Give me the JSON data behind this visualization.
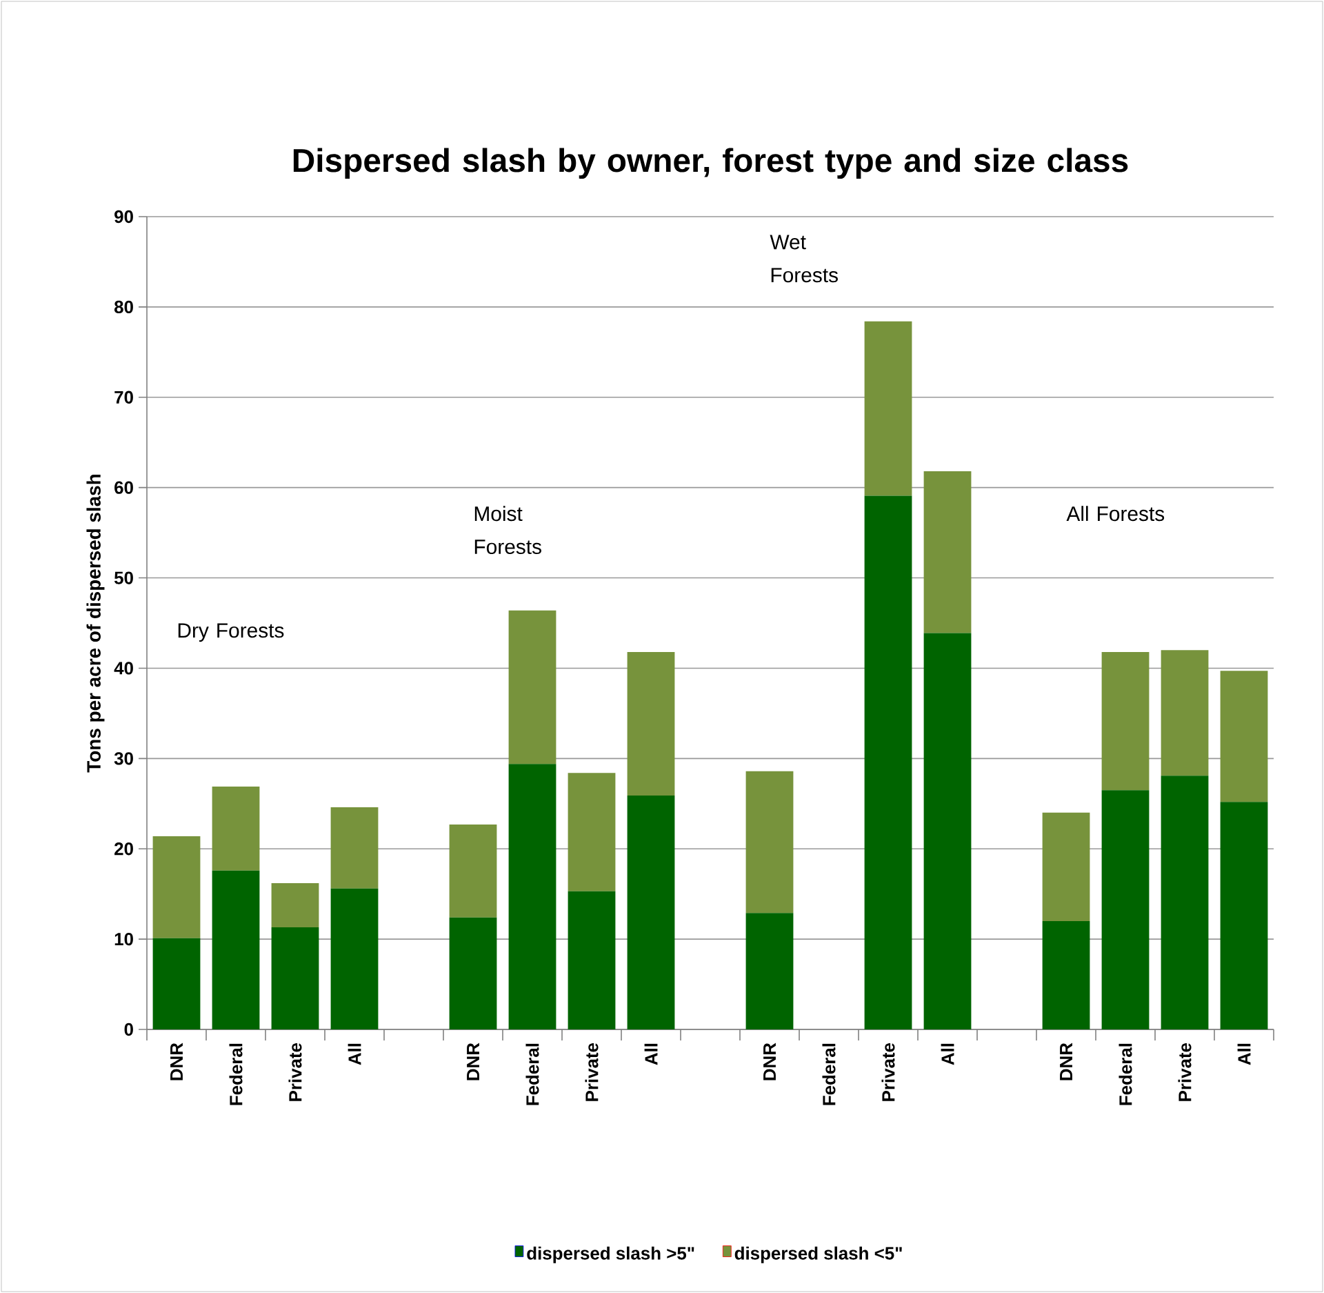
{
  "chart_data": {
    "type": "bar",
    "stacked": true,
    "title": "Dispersed slash by owner, forest type and size class",
    "ylabel": "Tons per acre of dispersed slash",
    "categories": [
      "DNR",
      "Federal",
      "Private",
      "All",
      null,
      "DNR",
      "Federal",
      "Private",
      "All",
      null,
      "DNR",
      "Federal",
      "Private",
      "All",
      null,
      "DNR",
      "Federal",
      "Private",
      "All"
    ],
    "series": [
      {
        "name": "dispersed slash >5\"",
        "color": "#006400",
        "values": [
          10.1,
          17.6,
          11.3,
          15.6,
          null,
          12.4,
          29.4,
          15.3,
          25.9,
          null,
          12.9,
          null,
          59.1,
          43.9,
          null,
          12.0,
          26.5,
          28.1,
          25.2
        ]
      },
      {
        "name": "dispersed slash <5\"",
        "color": "#77933c",
        "values": [
          11.3,
          9.3,
          4.9,
          9.0,
          null,
          10.3,
          17.0,
          13.1,
          15.9,
          null,
          15.7,
          null,
          19.3,
          17.9,
          null,
          12.0,
          15.3,
          13.9,
          14.5
        ]
      }
    ],
    "annotations": [
      "Dry Forests",
      "Moist Forests",
      "Wet Forests",
      "All Forests"
    ],
    "ylim": [
      0,
      90
    ],
    "yticks": [
      0,
      10,
      20,
      30,
      40,
      50,
      60,
      70,
      80,
      90
    ],
    "grid": "y",
    "legend": "bottom"
  }
}
